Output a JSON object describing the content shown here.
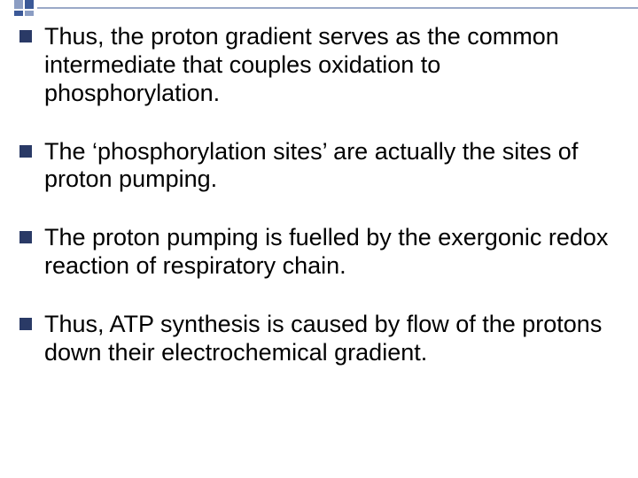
{
  "slide": {
    "background_color": "#ffffff",
    "text_color": "#000000",
    "bullet_color": "#2a3a66",
    "decor_colors": {
      "light": "#8b9dc3",
      "dark": "#3b5998",
      "line": "#9aa9c8"
    },
    "font_family": "Arial",
    "font_size_pt": 20,
    "bullets": [
      "Thus, the proton gradient serves as the common intermediate that couples oxidation to phosphorylation.",
      "The ‘phosphorylation sites’ are actually the sites of proton pumping.",
      "The proton pumping is fuelled by the exergonic redox reaction of respiratory chain.",
      "Thus, ATP synthesis is caused by flow of the protons down their electrochemical gradient."
    ]
  }
}
